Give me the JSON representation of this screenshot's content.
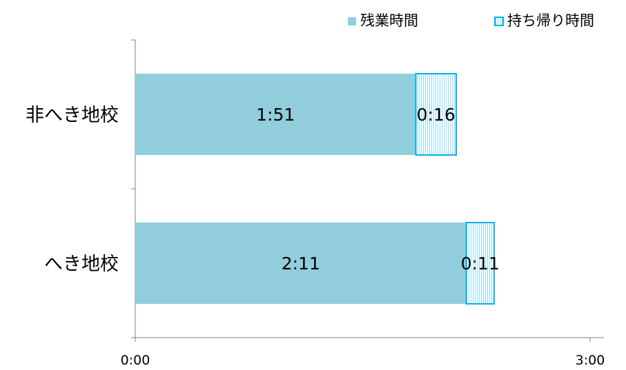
{
  "chart_data": {
    "type": "bar",
    "orientation": "horizontal",
    "stacked": true,
    "categories": [
      "非へき地校",
      "へき地校"
    ],
    "series": [
      {
        "name": "残業時間",
        "values": [
          111,
          131
        ],
        "labels": [
          "1:51",
          "2:11"
        ],
        "color": "#92CDDC",
        "pattern": "solid"
      },
      {
        "name": "持ち帰り時間",
        "values": [
          16,
          11
        ],
        "labels": [
          "0:16",
          "0:11"
        ],
        "color": "#00B0F0",
        "pattern": "vertical-stripes"
      }
    ],
    "x_unit": "minutes",
    "xlim": [
      0,
      180
    ],
    "x_ticks": [
      0,
      180
    ],
    "x_tick_labels": [
      "0:00",
      "3:00"
    ],
    "legend": "top-right",
    "grid": false
  }
}
